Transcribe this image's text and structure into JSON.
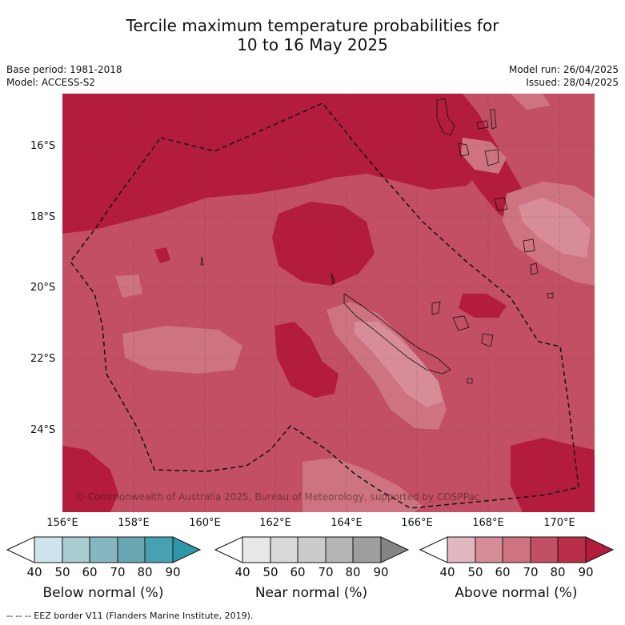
{
  "title_line1": "Tercile maximum temperature probabilities for",
  "title_line2": "10 to 16 May 2025",
  "base_period": "Base period: 1981-2018",
  "model": "Model: ACCESS-S2",
  "model_run": "Model run: 26/04/2025",
  "issued": "Issued: 28/04/2025",
  "lat_labels": [
    "16°S",
    "18°S",
    "20°S",
    "22°S",
    "24°S"
  ],
  "lon_labels": [
    "156°E",
    "158°E",
    "160°E",
    "162°E",
    "164°E",
    "166°E",
    "168°E",
    "170°E"
  ],
  "copyright": "© Commonwealth of Australia 2025, Bureau of Meteorology, supported by COSPPac",
  "legend": {
    "ticks": [
      "40",
      "50",
      "60",
      "70",
      "80",
      "90"
    ],
    "below": {
      "title": "Below normal (%)",
      "colors": [
        "#ffffff",
        "#cde4ea",
        "#a9ccd3",
        "#88b6c0",
        "#68a6b2",
        "#47a1b0",
        "#2d96a8"
      ]
    },
    "near": {
      "title": "Near normal (%)",
      "colors": [
        "#ffffff",
        "#e8e8e8",
        "#d9d9d9",
        "#cbcbcb",
        "#b6b6b6",
        "#9e9e9e",
        "#858585"
      ]
    },
    "above": {
      "title": "Above normal (%)",
      "colors": [
        "#ffffff",
        "#e2b7bf",
        "#d88c98",
        "#cd7480",
        "#c24f63",
        "#ba2d48",
        "#b31b3d"
      ]
    }
  },
  "eez_note": "--  --  -- EEZ border V11 (Flanders Marine Institute, 2019)."
}
